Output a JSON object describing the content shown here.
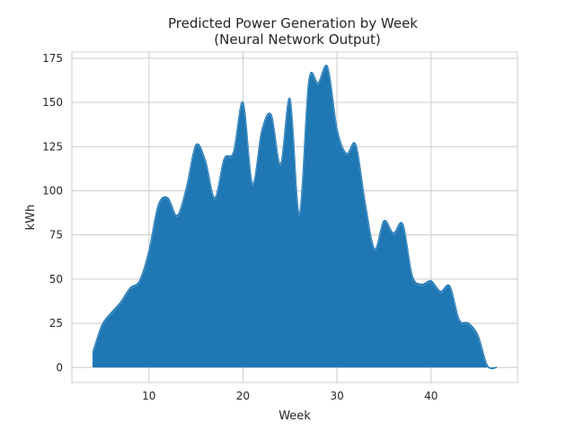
{
  "chart_data": {
    "type": "area",
    "title_line1": "Predicted Power Generation by Week",
    "title_line2": "(Neural Network Output)",
    "xlabel": "Week",
    "ylabel": "kWh",
    "xlim": [
      1.8,
      49.2
    ],
    "ylim": [
      -8.5,
      178.5
    ],
    "xticks": [
      10,
      20,
      30,
      40
    ],
    "yticks": [
      0,
      25,
      50,
      75,
      100,
      125,
      150,
      175
    ],
    "grid": true,
    "colors": {
      "fill": "#1f77b4",
      "grid": "#cccccc",
      "axes": "#cccccc",
      "text": "#262626"
    },
    "series": [
      {
        "x": [
          4,
          5,
          6,
          7,
          8,
          9,
          10,
          11,
          12,
          13,
          14,
          15,
          16,
          17,
          18,
          19,
          20,
          21,
          22,
          23,
          24,
          25,
          26,
          27,
          28,
          29,
          30,
          31,
          32,
          33,
          34,
          35,
          36,
          37,
          38,
          39,
          40,
          41,
          42,
          43,
          44,
          45,
          46,
          47
        ],
        "y": [
          8,
          24,
          31,
          37,
          45,
          49,
          66,
          92,
          96,
          86,
          102,
          126,
          117,
          96,
          118,
          122,
          150,
          104,
          134,
          143,
          115,
          152,
          87,
          162,
          161,
          170,
          135,
          121,
          126,
          93,
          67,
          83,
          76,
          81,
          52,
          47,
          49,
          43,
          46,
          27,
          25,
          18,
          1,
          0
        ]
      }
    ]
  }
}
